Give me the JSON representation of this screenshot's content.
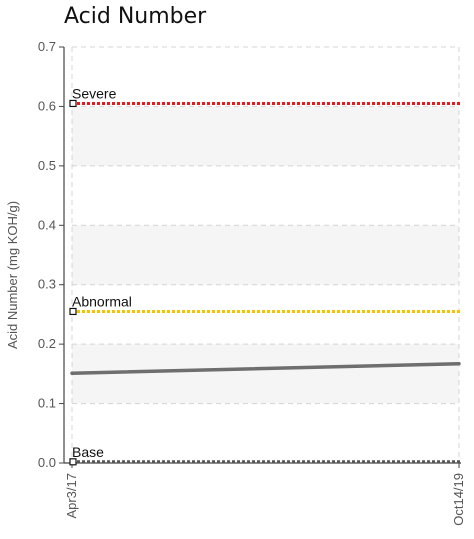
{
  "chart_data": {
    "type": "line",
    "title": "Acid Number",
    "ylabel": "Acid Number (mg KOH/g)",
    "xlabel": "",
    "ylim": [
      0,
      0.7
    ],
    "yticks": [
      0.0,
      0.1,
      0.2,
      0.3,
      0.4,
      0.5,
      0.6,
      0.7
    ],
    "ytick_labels": [
      "0.0",
      "0.1",
      "0.2",
      "0.3",
      "0.4",
      "0.5",
      "0.6",
      "0.7"
    ],
    "x_categories": [
      "Apr3/17",
      "Oct14/19"
    ],
    "grid": true,
    "series": [
      {
        "values": [
          0.151,
          0.167
        ],
        "color": "#6e6e6e"
      }
    ],
    "thresholds": [
      {
        "label": "Severe",
        "value": 0.605,
        "color": "#e41a1c"
      },
      {
        "label": "Abnormal",
        "value": 0.255,
        "color": "#f5c400"
      },
      {
        "label": "Base",
        "value": 0.002,
        "color": "#555555"
      }
    ]
  }
}
